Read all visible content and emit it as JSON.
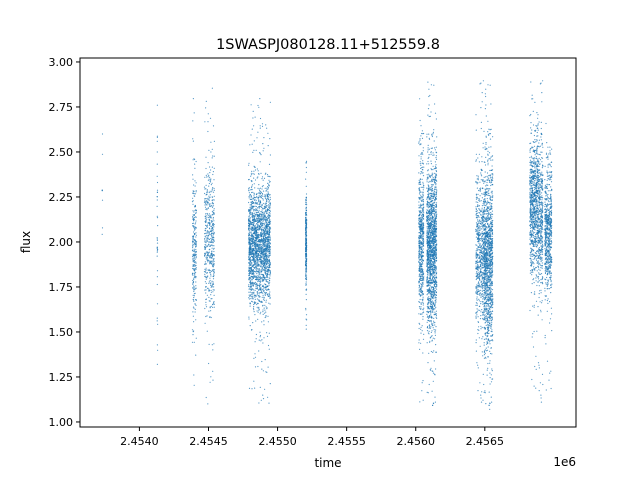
{
  "chart_data": {
    "type": "scatter",
    "title": "1SWASPJ080128.11+512559.8",
    "xlabel": "time",
    "ylabel": "flux",
    "x_offset_label": "1e6",
    "xlim": [
      2453570,
      2457160
    ],
    "ylim": [
      0.972,
      3.022
    ],
    "x_ticks": [
      2454000,
      2454500,
      2455000,
      2455500,
      2456000,
      2456500
    ],
    "x_tick_labels": [
      "2.4540",
      "2.4545",
      "2.4550",
      "2.4555",
      "2.4560",
      "2.4565"
    ],
    "y_ticks": [
      1.0,
      1.25,
      1.5,
      1.75,
      2.0,
      2.25,
      2.5,
      2.75,
      3.0
    ],
    "y_tick_labels": [
      "1.00",
      "1.25",
      "1.50",
      "1.75",
      "2.00",
      "2.25",
      "2.50",
      "2.75",
      "3.00"
    ],
    "grid": false,
    "legend": "none",
    "color": "#1f77b4",
    "observing_seasons": [
      {
        "x_range": [
          2453730,
          2453734
        ],
        "y_mean": 2.2,
        "y_sd": 0.3,
        "y_range": [
          1.86,
          2.6
        ],
        "n": 8
      },
      {
        "x_range": [
          2454128,
          2454132
        ],
        "y_mean": 2.05,
        "y_sd": 0.35,
        "y_range": [
          1.32,
          2.82
        ],
        "n": 40
      },
      {
        "x_range": [
          2454384,
          2454413
        ],
        "y_mean": 1.95,
        "y_sd": 0.22,
        "y_range": [
          1.08,
          2.85
        ],
        "n": 250
      },
      {
        "x_range": [
          2454471,
          2454543
        ],
        "y_mean": 2.0,
        "y_sd": 0.2,
        "y_range": [
          1.07,
          2.9
        ],
        "n": 500
      },
      {
        "x_range": [
          2454790,
          2454949
        ],
        "y_mean": 1.98,
        "y_sd": 0.16,
        "y_range": [
          1.1,
          2.8
        ],
        "n": 2200
      },
      {
        "x_range": [
          2455203,
          2455210
        ],
        "y_mean": 2.0,
        "y_sd": 0.11,
        "y_range": [
          1.5,
          2.45
        ],
        "n": 300
      },
      {
        "x_range": [
          2456022,
          2456058
        ],
        "y_mean": 2.0,
        "y_sd": 0.22,
        "y_range": [
          1.08,
          2.9
        ],
        "n": 600
      },
      {
        "x_range": [
          2456080,
          2456152
        ],
        "y_mean": 1.97,
        "y_sd": 0.22,
        "y_range": [
          1.07,
          2.93
        ],
        "n": 1600
      },
      {
        "x_range": [
          2456435,
          2456493
        ],
        "y_mean": 1.95,
        "y_sd": 0.2,
        "y_range": [
          1.08,
          2.9
        ],
        "n": 600
      },
      {
        "x_range": [
          2456493,
          2456558
        ],
        "y_mean": 1.9,
        "y_sd": 0.25,
        "y_range": [
          1.07,
          2.93
        ],
        "n": 1300
      },
      {
        "x_range": [
          2456826,
          2456884
        ],
        "y_mean": 2.2,
        "y_sd": 0.18,
        "y_range": [
          1.1,
          2.93
        ],
        "n": 800
      },
      {
        "x_range": [
          2456884,
          2456920
        ],
        "y_mean": 2.15,
        "y_sd": 0.2,
        "y_range": [
          1.08,
          2.9
        ],
        "n": 450
      },
      {
        "x_range": [
          2456934,
          2456985
        ],
        "y_mean": 2.05,
        "y_sd": 0.17,
        "y_range": [
          1.15,
          2.75
        ],
        "n": 650
      }
    ]
  }
}
